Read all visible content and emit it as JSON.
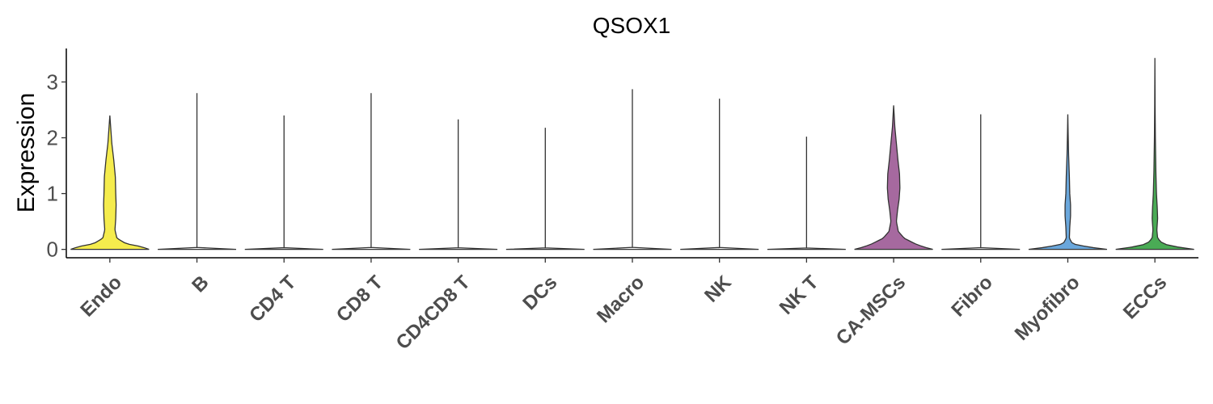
{
  "chart_data": {
    "type": "violin",
    "title": "QSOX1",
    "xlabel": "",
    "ylabel": "Expression",
    "ylim": [
      -0.15,
      3.6
    ],
    "yticks": [
      "0",
      "1",
      "2",
      "3"
    ],
    "grid": false,
    "legend": "none",
    "categories": [
      "Endo",
      "B",
      "CD4 T",
      "CD8 T",
      "CD4CD8 T",
      "DCs",
      "Macro",
      "NK",
      "NK T",
      "CA-MSCs",
      "Fibro",
      "Myofibro",
      "ECCs"
    ],
    "colors": [
      "#f5ec4d",
      "#ffffff",
      "#ffffff",
      "#ffffff",
      "#ffffff",
      "#ffffff",
      "#ffffff",
      "#ffffff",
      "#ffffff",
      "#a6699f",
      "#ffffff",
      "#6aa7dc",
      "#4aab55"
    ],
    "max_values": [
      2.4,
      2.8,
      2.4,
      2.8,
      2.33,
      2.18,
      2.87,
      2.7,
      2.02,
      2.58,
      2.42,
      2.42,
      3.43
    ],
    "density_profiles": [
      [
        [
          0,
          1.0
        ],
        [
          0.05,
          0.8
        ],
        [
          0.1,
          0.42
        ],
        [
          0.2,
          0.18
        ],
        [
          0.35,
          0.13
        ],
        [
          0.55,
          0.15
        ],
        [
          0.8,
          0.16
        ],
        [
          1.0,
          0.15
        ],
        [
          1.3,
          0.14
        ],
        [
          1.6,
          0.1
        ],
        [
          1.9,
          0.05
        ],
        [
          2.2,
          0.02
        ],
        [
          2.4,
          0.0
        ]
      ],
      [
        [
          0,
          1.0
        ],
        [
          0.02,
          0.0
        ],
        [
          2.8,
          0.0
        ]
      ],
      [
        [
          0,
          1.0
        ],
        [
          0.02,
          0.0
        ],
        [
          2.4,
          0.0
        ]
      ],
      [
        [
          0,
          1.0
        ],
        [
          0.02,
          0.0
        ],
        [
          2.8,
          0.0
        ]
      ],
      [
        [
          0,
          1.0
        ],
        [
          0.02,
          0.0
        ],
        [
          2.33,
          0.0
        ]
      ],
      [
        [
          0,
          1.0
        ],
        [
          0.02,
          0.0
        ],
        [
          2.18,
          0.0
        ]
      ],
      [
        [
          0,
          1.0
        ],
        [
          0.02,
          0.0
        ],
        [
          2.87,
          0.0
        ]
      ],
      [
        [
          0,
          1.0
        ],
        [
          0.02,
          0.0
        ],
        [
          2.7,
          0.0
        ]
      ],
      [
        [
          0,
          1.0
        ],
        [
          0.02,
          0.0
        ],
        [
          2.02,
          0.0
        ]
      ],
      [
        [
          0,
          1.0
        ],
        [
          0.04,
          0.78
        ],
        [
          0.1,
          0.55
        ],
        [
          0.2,
          0.27
        ],
        [
          0.32,
          0.12
        ],
        [
          0.5,
          0.07
        ],
        [
          0.7,
          0.1
        ],
        [
          0.9,
          0.14
        ],
        [
          1.1,
          0.16
        ],
        [
          1.35,
          0.15
        ],
        [
          1.6,
          0.11
        ],
        [
          1.9,
          0.07
        ],
        [
          2.2,
          0.03
        ],
        [
          2.58,
          0.0
        ]
      ],
      [
        [
          0,
          1.0
        ],
        [
          0.02,
          0.0
        ],
        [
          2.42,
          0.0
        ]
      ],
      [
        [
          0,
          1.0
        ],
        [
          0.04,
          0.55
        ],
        [
          0.1,
          0.12
        ],
        [
          0.2,
          0.04
        ],
        [
          0.4,
          0.05
        ],
        [
          0.6,
          0.07
        ],
        [
          0.8,
          0.07
        ],
        [
          1.0,
          0.05
        ],
        [
          1.3,
          0.04
        ],
        [
          1.7,
          0.02
        ],
        [
          2.1,
          0.008
        ],
        [
          2.42,
          0.0
        ]
      ],
      [
        [
          0,
          1.0
        ],
        [
          0.04,
          0.6
        ],
        [
          0.1,
          0.2
        ],
        [
          0.2,
          0.07
        ],
        [
          0.35,
          0.05
        ],
        [
          0.55,
          0.07
        ],
        [
          0.75,
          0.06
        ],
        [
          1.0,
          0.04
        ],
        [
          1.4,
          0.025
        ],
        [
          2.0,
          0.012
        ],
        [
          2.6,
          0.005
        ],
        [
          3.43,
          0.0
        ]
      ]
    ]
  }
}
